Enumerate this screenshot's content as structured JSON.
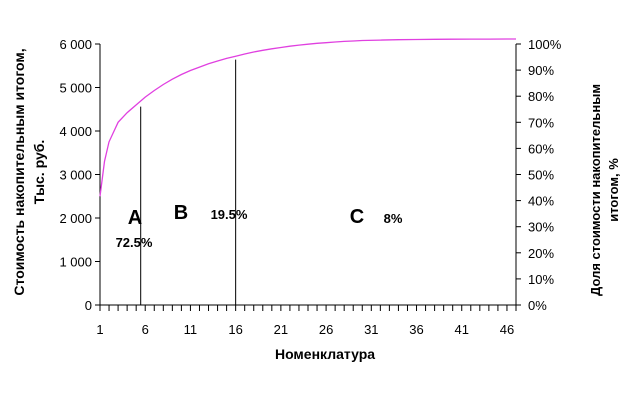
{
  "chart_data": {
    "type": "line",
    "xlabel": "Номенклатура",
    "ylabel_lines": [
      "Стоимость накопительным итогом,",
      "Тыс. руб."
    ],
    "ylabel2_lines": [
      "Доля стоимости  накопительным",
      "итогом, %"
    ],
    "x_range": [
      1,
      47
    ],
    "x_tick_labels": [
      "1",
      "6",
      "11",
      "16",
      "21",
      "26",
      "31",
      "36",
      "41",
      "46"
    ],
    "x_tick_values": [
      1,
      6,
      11,
      16,
      21,
      26,
      31,
      36,
      41,
      46
    ],
    "ylim": [
      0,
      6000
    ],
    "y_ticks": [
      0,
      1000,
      2000,
      3000,
      4000,
      5000,
      6000
    ],
    "y_tick_labels": [
      "0",
      "1 000",
      "2 000",
      "3 000",
      "4 000",
      "5 000",
      "6 000"
    ],
    "ylim2": [
      0,
      100
    ],
    "y2_ticks": [
      0,
      10,
      20,
      30,
      40,
      50,
      60,
      70,
      80,
      90,
      100
    ],
    "y2_tick_labels": [
      "0%",
      "10%",
      "20%",
      "30%",
      "40%",
      "50%",
      "60%",
      "70%",
      "80%",
      "90%",
      "100%"
    ],
    "grid": false,
    "series": [
      {
        "color": "#e040e0",
        "x": [
          1,
          1.5,
          2,
          3,
          4,
          5,
          6,
          7,
          8,
          9,
          10,
          11,
          12,
          13,
          14,
          15,
          16,
          17,
          18,
          19,
          20,
          21,
          22,
          23,
          24,
          25,
          26,
          27,
          28,
          29,
          30,
          32,
          34,
          36,
          38,
          40,
          42,
          44,
          46,
          47
        ],
        "y": [
          2500,
          3300,
          3750,
          4200,
          4420,
          4600,
          4780,
          4930,
          5070,
          5190,
          5300,
          5390,
          5470,
          5545,
          5610,
          5670,
          5720,
          5770,
          5815,
          5855,
          5890,
          5920,
          5950,
          5975,
          5995,
          6015,
          6030,
          6045,
          6060,
          6070,
          6080,
          6090,
          6098,
          6104,
          6108,
          6110,
          6112,
          6113,
          6114,
          6114
        ]
      }
    ],
    "dividers": [
      {
        "x": 5.5,
        "y_top": 4560
      },
      {
        "x": 16,
        "y_top": 5640
      }
    ],
    "zones": [
      {
        "letter": "A",
        "percent": "72.5%"
      },
      {
        "letter": "B",
        "percent": "19.5%"
      },
      {
        "letter": "C",
        "percent": "8%"
      }
    ]
  }
}
